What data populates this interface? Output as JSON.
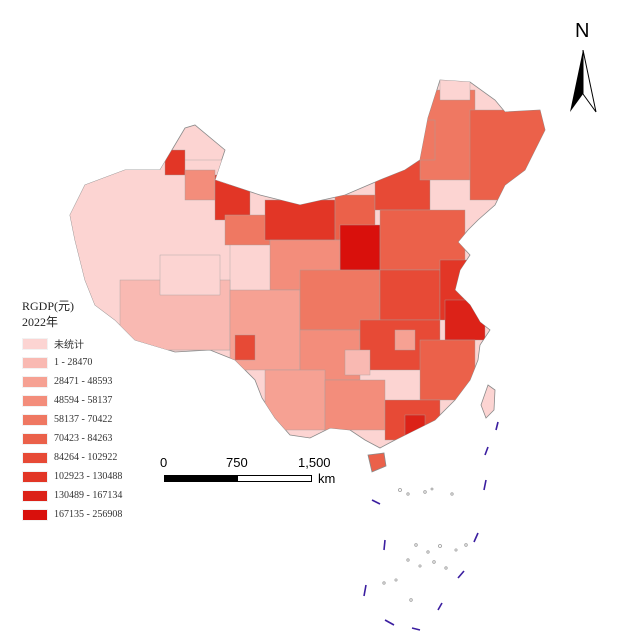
{
  "legend": {
    "title": "RGDP(元)",
    "subtitle": "2022年",
    "items": [
      {
        "label": "未统计",
        "color": "#fcd4d2"
      },
      {
        "label": "1 - 28470",
        "color": "#f9b9b2"
      },
      {
        "label": "28471 - 48593",
        "color": "#f6a193"
      },
      {
        "label": "48594 - 58137",
        "color": "#f38d7b"
      },
      {
        "label": "58137 - 70422",
        "color": "#ef7862"
      },
      {
        "label": "70423 - 84263",
        "color": "#eb614a"
      },
      {
        "label": "84264 - 102922",
        "color": "#e74a36"
      },
      {
        "label": "102923 - 130488",
        "color": "#e23626"
      },
      {
        "label": "130489 - 167134",
        "color": "#dc2218"
      },
      {
        "label": "167135 - 256908",
        "color": "#d9100c"
      }
    ]
  },
  "north_arrow": {
    "letter": "N"
  },
  "scale_bar": {
    "ticks": [
      "0",
      "750",
      "1,500"
    ],
    "unit": "km"
  },
  "colors": {
    "border": "#8a8a8a",
    "boundary_line": "#3b1ea0"
  }
}
